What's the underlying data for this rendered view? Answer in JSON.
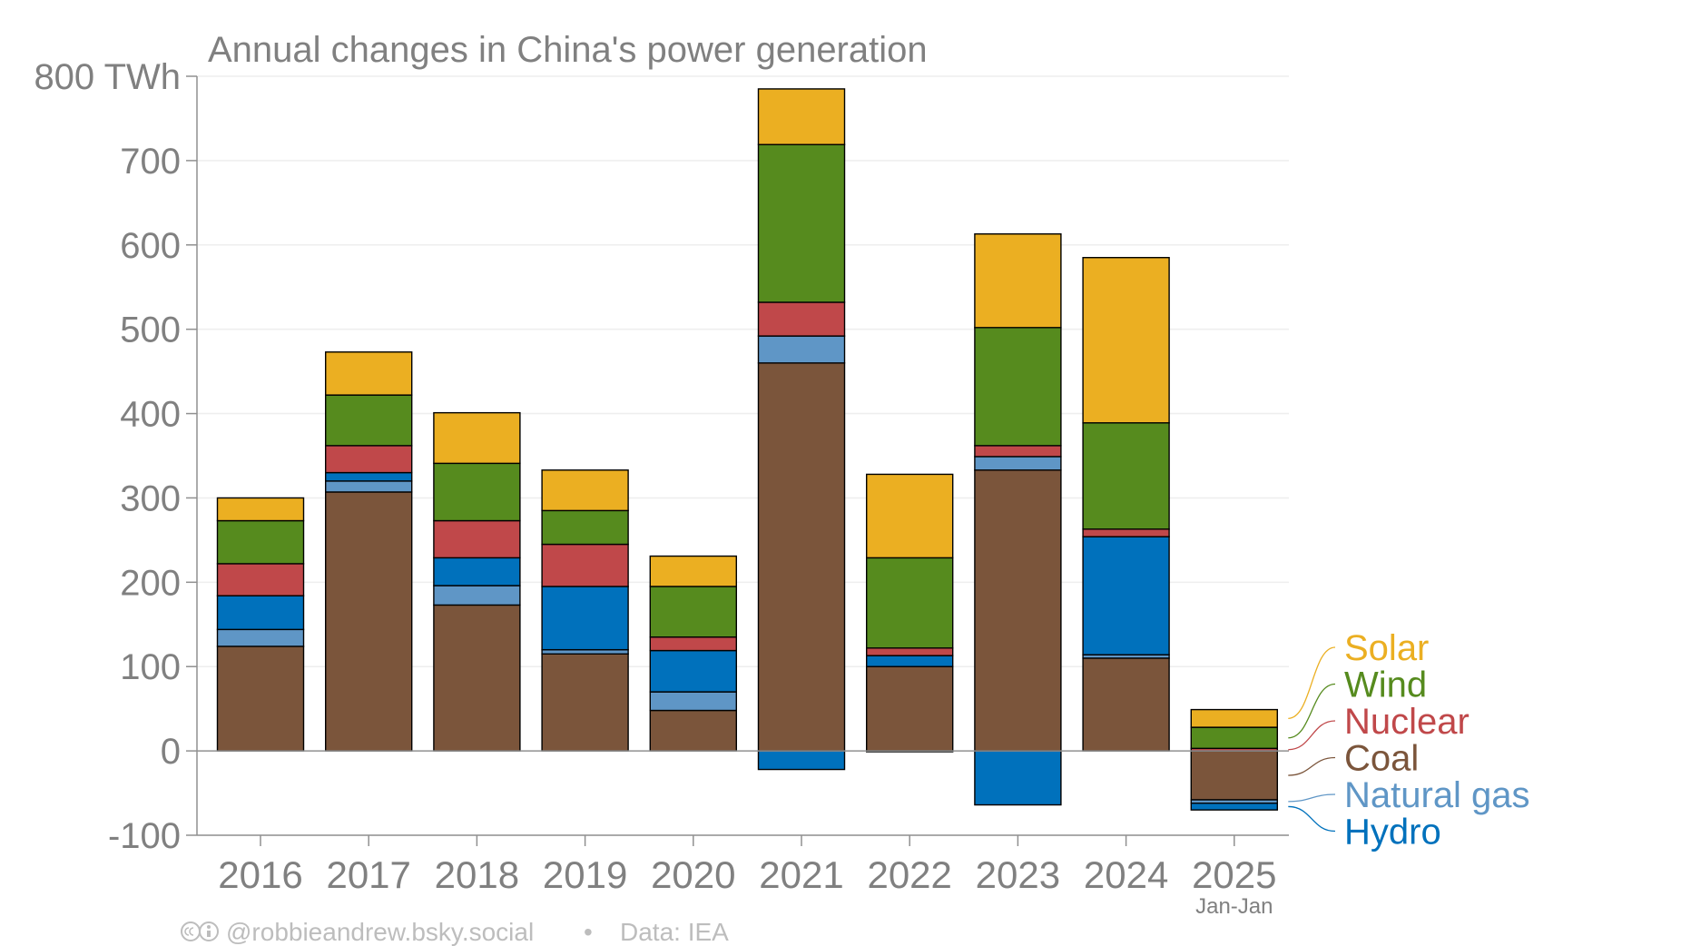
{
  "chart_data": {
    "type": "bar",
    "stacked": true,
    "title": "Annual changes in China's power generation",
    "ylabel": "",
    "xlabel": "",
    "y_unit": "TWh",
    "ylim": [
      -100,
      800
    ],
    "yticks": [
      -100,
      0,
      100,
      200,
      300,
      400,
      500,
      600,
      700,
      800
    ],
    "ytick_labels": [
      "-100",
      "0",
      "100",
      "200",
      "300",
      "400",
      "500",
      "600",
      "700",
      "800 TWh"
    ],
    "categories": [
      "2016",
      "2017",
      "2018",
      "2019",
      "2020",
      "2021",
      "2022",
      "2023",
      "2024",
      "2025"
    ],
    "category_sublabels": [
      "",
      "",
      "",
      "",
      "",
      "",
      "",
      "",
      "",
      "Jan-Jan"
    ],
    "grid": true,
    "legend_position": "right, inline labels",
    "series": [
      {
        "name": "Coal",
        "color": "#7b553b",
        "values": [
          124,
          307,
          173,
          115,
          48,
          460,
          100,
          333,
          110,
          -58
        ]
      },
      {
        "name": "Natural gas",
        "color": "#5f96c6",
        "values": [
          20,
          13,
          23,
          5,
          22,
          32,
          -1,
          16,
          4,
          -4
        ]
      },
      {
        "name": "Hydro",
        "color": "#0071bc",
        "values": [
          40,
          10,
          33,
          75,
          49,
          -22,
          13,
          -64,
          140,
          -8
        ]
      },
      {
        "name": "Nuclear",
        "color": "#c0484a",
        "values": [
          38,
          32,
          44,
          50,
          16,
          40,
          9,
          13,
          9,
          3
        ]
      },
      {
        "name": "Wind",
        "color": "#568b1e",
        "values": [
          51,
          60,
          68,
          40,
          60,
          187,
          107,
          140,
          126,
          25
        ]
      },
      {
        "name": "Solar",
        "color": "#ebaf22",
        "values": [
          27,
          51,
          60,
          48,
          36,
          66,
          99,
          111,
          196,
          21
        ]
      }
    ],
    "legend_order": [
      "Solar",
      "Wind",
      "Nuclear",
      "Coal",
      "Natural gas",
      "Hydro"
    ]
  },
  "footer": {
    "cc_icons": "cc-by-icons",
    "credit": "@robbieandrew.bsky.social",
    "separator": "•",
    "source": "Data: IEA"
  }
}
